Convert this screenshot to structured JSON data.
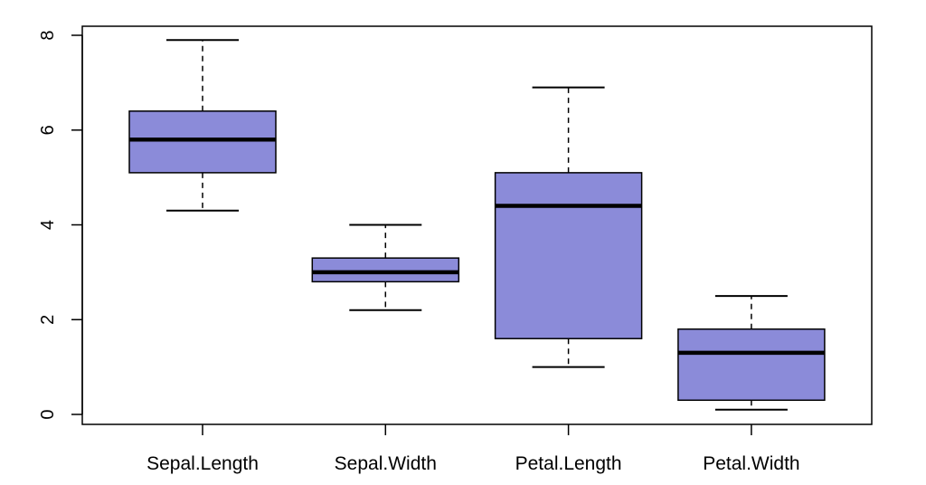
{
  "chart_data": {
    "type": "boxplot",
    "title": "",
    "xlabel": "",
    "ylabel": "",
    "ylim": [
      -0.2,
      8.1
    ],
    "y_ticks": [
      "0",
      "2",
      "4",
      "6",
      "8"
    ],
    "categories": [
      "Sepal.Length",
      "Sepal.Width",
      "Petal.Length",
      "Petal.Width"
    ],
    "box_color": "#8b8bd9",
    "boxes": [
      {
        "category": "Sepal.Length",
        "whisker_low": 4.3,
        "q1": 5.1,
        "median": 5.8,
        "q3": 6.4,
        "whisker_high": 7.9
      },
      {
        "category": "Sepal.Width",
        "whisker_low": 2.2,
        "q1": 2.8,
        "median": 3.0,
        "q3": 3.3,
        "whisker_high": 4.0
      },
      {
        "category": "Petal.Length",
        "whisker_low": 1.0,
        "q1": 1.6,
        "median": 4.4,
        "q3": 5.1,
        "whisker_high": 6.9
      },
      {
        "category": "Petal.Width",
        "whisker_low": 0.1,
        "q1": 0.3,
        "median": 1.3,
        "q3": 1.8,
        "whisker_high": 2.5
      }
    ],
    "grid": false,
    "legend": "none"
  }
}
